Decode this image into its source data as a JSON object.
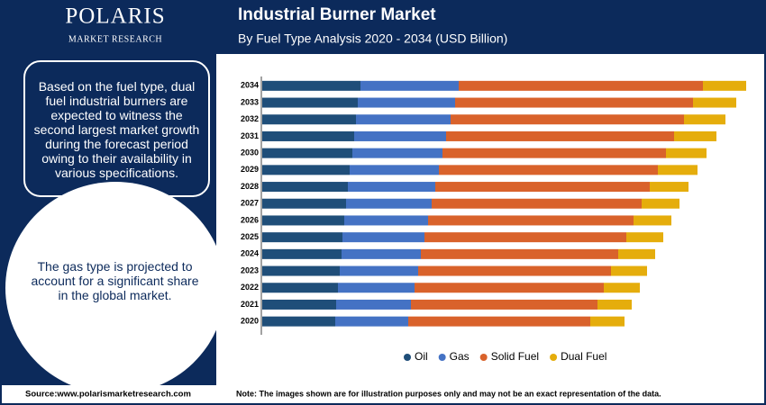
{
  "logo": {
    "name": "POLARIS",
    "tagline": "MARKET RESEARCH"
  },
  "notes": {
    "box1": "Based on the fuel type, dual fuel industrial burners are expected to witness the second largest market growth during the forecast period owing to their availability in various specifications.",
    "box2": "The gas type is projected to account for a significant share in the global market."
  },
  "footer": {
    "source": "Source:www.polarismarketresearch.com",
    "note": "Note: The images shown are for illustration purposes only and may not be an exact representation of the data."
  },
  "chart_data": {
    "type": "stacked-barh",
    "title": "Industrial Burner Market",
    "subtitle": "By Fuel Type Analysis 2020 - 2034 (USD Billion)",
    "categories": [
      "2034",
      "2033",
      "2032",
      "2031",
      "2030",
      "2029",
      "2028",
      "2027",
      "2026",
      "2025",
      "2024",
      "2023",
      "2022",
      "2021",
      "2020"
    ],
    "xlim": [
      0,
      55
    ],
    "series": [
      {
        "name": "Oil",
        "color": "#1f4e79",
        "values": [
          10.9,
          10.6,
          10.4,
          10.2,
          10.0,
          9.7,
          9.5,
          9.3,
          9.1,
          8.9,
          8.8,
          8.6,
          8.4,
          8.2,
          8.1
        ]
      },
      {
        "name": "Gas",
        "color": "#4472c4",
        "values": [
          10.9,
          10.8,
          10.5,
          10.2,
          10.0,
          9.9,
          9.7,
          9.5,
          9.3,
          9.1,
          8.8,
          8.7,
          8.5,
          8.3,
          8.1
        ]
      },
      {
        "name": "Solid Fuel",
        "color": "#d9622b",
        "values": [
          27.1,
          26.4,
          25.9,
          25.3,
          24.8,
          24.3,
          23.8,
          23.3,
          22.8,
          22.4,
          21.9,
          21.4,
          21.0,
          20.7,
          20.2
        ]
      },
      {
        "name": "Dual Fuel",
        "color": "#e5ad0c",
        "values": [
          4.8,
          4.8,
          4.6,
          4.7,
          4.5,
          4.4,
          4.3,
          4.2,
          4.2,
          4.1,
          4.1,
          4.0,
          4.0,
          3.8,
          3.8
        ]
      }
    ],
    "legend": "bottom"
  }
}
